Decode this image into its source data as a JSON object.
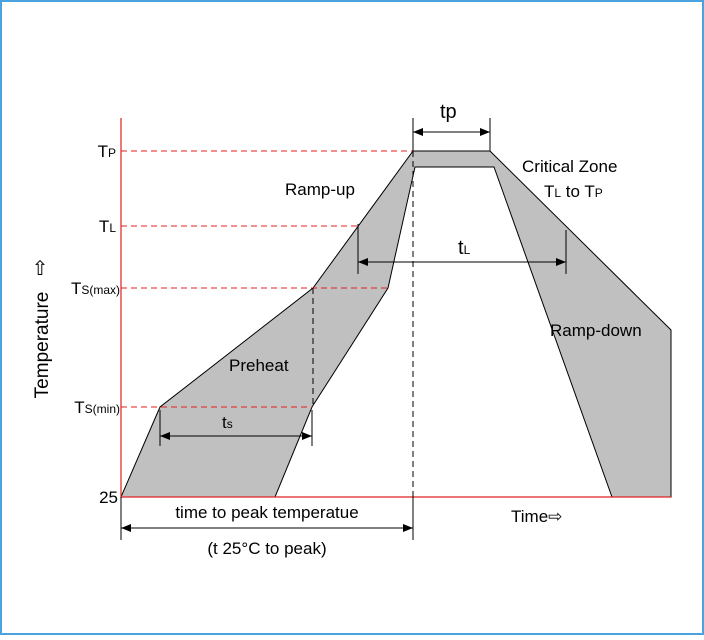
{
  "axis": {
    "y_label": "Temperature",
    "y_arrow": "⇧",
    "x_label": "Time⇨"
  },
  "levels": [
    {
      "main": "T",
      "sub": "P"
    },
    {
      "main": "T",
      "sub": "L"
    },
    {
      "main": "T",
      "sub": "S(max)"
    },
    {
      "main": "T",
      "sub": "S(min)"
    },
    {
      "main": "25"
    }
  ],
  "zones": {
    "ramp_up": "Ramp-up",
    "preheat": "Preheat",
    "critical_zone": "Critical Zone",
    "critical_range": {
      "a": "T",
      "a_sub": "L",
      "mid": " to T",
      "b_sub": "P"
    },
    "ramp_down": "Ramp-down"
  },
  "intervals": {
    "tp": "tp",
    "tl": {
      "main": "t",
      "sub": "L"
    },
    "ts": {
      "main": "t",
      "sub": "s"
    },
    "peak_time": "time to peak temperatue",
    "peak_time_note": "(t 25°C to peak)"
  }
}
